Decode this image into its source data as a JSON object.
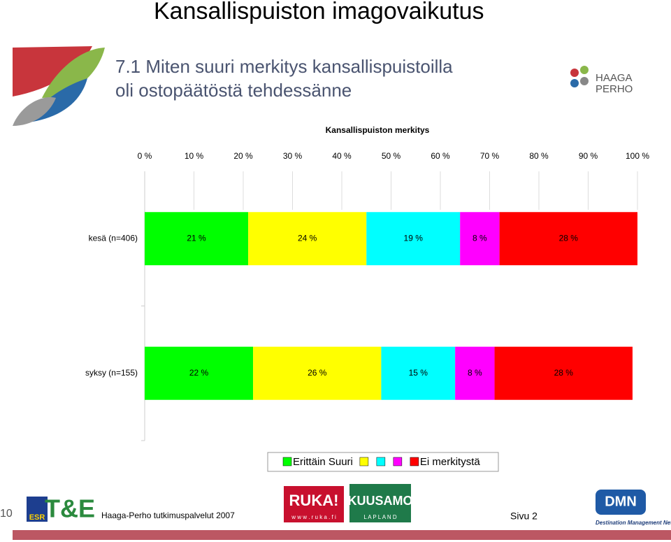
{
  "slide": {
    "title": "Kansallispuiston imagovaikutus",
    "subtitle_line1": "7.1 Miten suuri merkitys kansallispuistoilla",
    "subtitle_line2": "oli ostopäätöstä tehdessänne",
    "logo_haaga": "HAAGA",
    "logo_perho": "PERHO",
    "page_number": "10",
    "logo_esr": "ESR",
    "logo_te": "T&E",
    "footer_source": "Haaga-Perho tutkimuspalvelut 2007",
    "logo_ruka": "RUKA!",
    "logo_ruka_url": "w w w . r u k a . f i",
    "logo_kuusamo": "KUUSAMO",
    "logo_lapland": "L A P L A N D",
    "footer_page": "Sivu 2",
    "logo_dmn": "DMN",
    "logo_dmn_sub": "Destination Management Net"
  },
  "chart_data": {
    "type": "stacked_barh",
    "title": "Kansallispuiston merkitys",
    "categories": [
      "kesä (n=406)",
      "syksy (n=155)"
    ],
    "series": [
      {
        "name": "Erittäin Suuri",
        "color": "#00ff00",
        "values": [
          21,
          22
        ],
        "value_labels": [
          "21 %",
          "22 %"
        ]
      },
      {
        "name": null,
        "color": "#ffff00",
        "values": [
          24,
          26
        ],
        "value_labels": [
          "24 %",
          "26 %"
        ]
      },
      {
        "name": null,
        "color": "#00ffff",
        "values": [
          19,
          15
        ],
        "value_labels": [
          "19 %",
          "15 %"
        ]
      },
      {
        "name": null,
        "color": "#ff00ff",
        "values": [
          8,
          8
        ],
        "value_labels": [
          "8 %",
          "8 %"
        ]
      },
      {
        "name": "Ei merkitystä",
        "color": "#ff0000",
        "values": [
          28,
          28
        ],
        "value_labels": [
          "28 %",
          "28 %"
        ]
      }
    ],
    "xlim": [
      0,
      100
    ],
    "xticks": [
      {
        "value": 0,
        "label": "0 %"
      },
      {
        "value": 10,
        "label": "10 %"
      },
      {
        "value": 20,
        "label": "20 %"
      },
      {
        "value": 30,
        "label": "30 %"
      },
      {
        "value": 40,
        "label": "40 %"
      },
      {
        "value": 50,
        "label": "50 %"
      },
      {
        "value": 60,
        "label": "60 %"
      },
      {
        "value": 70,
        "label": "70 %"
      },
      {
        "value": 80,
        "label": "80 %"
      },
      {
        "value": 90,
        "label": "90 %"
      },
      {
        "value": 100,
        "label": "100 %"
      }
    ],
    "legend": "bottom"
  }
}
